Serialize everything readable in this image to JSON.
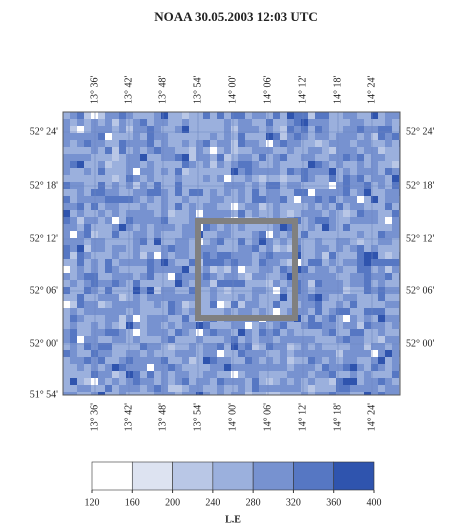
{
  "map": {
    "title": "NOAA 30.05.2003  12:03 UTC",
    "top_labels": [
      "13° 36'",
      "13° 42'",
      "13° 48'",
      "13° 54'",
      "14° 00'",
      "14° 06'",
      "14° 12'",
      "14° 18'",
      "14° 24'"
    ],
    "bottom_labels": [
      "13° 36'",
      "13° 42'",
      "13° 48'",
      "13° 54'",
      "14° 00'",
      "14° 06'",
      "14° 12'",
      "14° 18'",
      "14° 24'"
    ],
    "left_labels": [
      "52° 24'",
      "52° 18'",
      "52° 12'",
      "52° 06'",
      "52° 00'",
      "51° 54'"
    ],
    "right_labels": [
      "52° 24'",
      "52° 18'",
      "52° 12'",
      "52° 06'",
      "52° 00'"
    ]
  },
  "colorbar": {
    "ticks": [
      120,
      160,
      200,
      240,
      280,
      320,
      360,
      400
    ],
    "colors": [
      "#ffffff",
      "#dde3f1",
      "#b9c7e6",
      "#9bb0dd",
      "#7792d0",
      "#5677c3",
      "#2f54ae"
    ],
    "label": "L.E"
  }
}
